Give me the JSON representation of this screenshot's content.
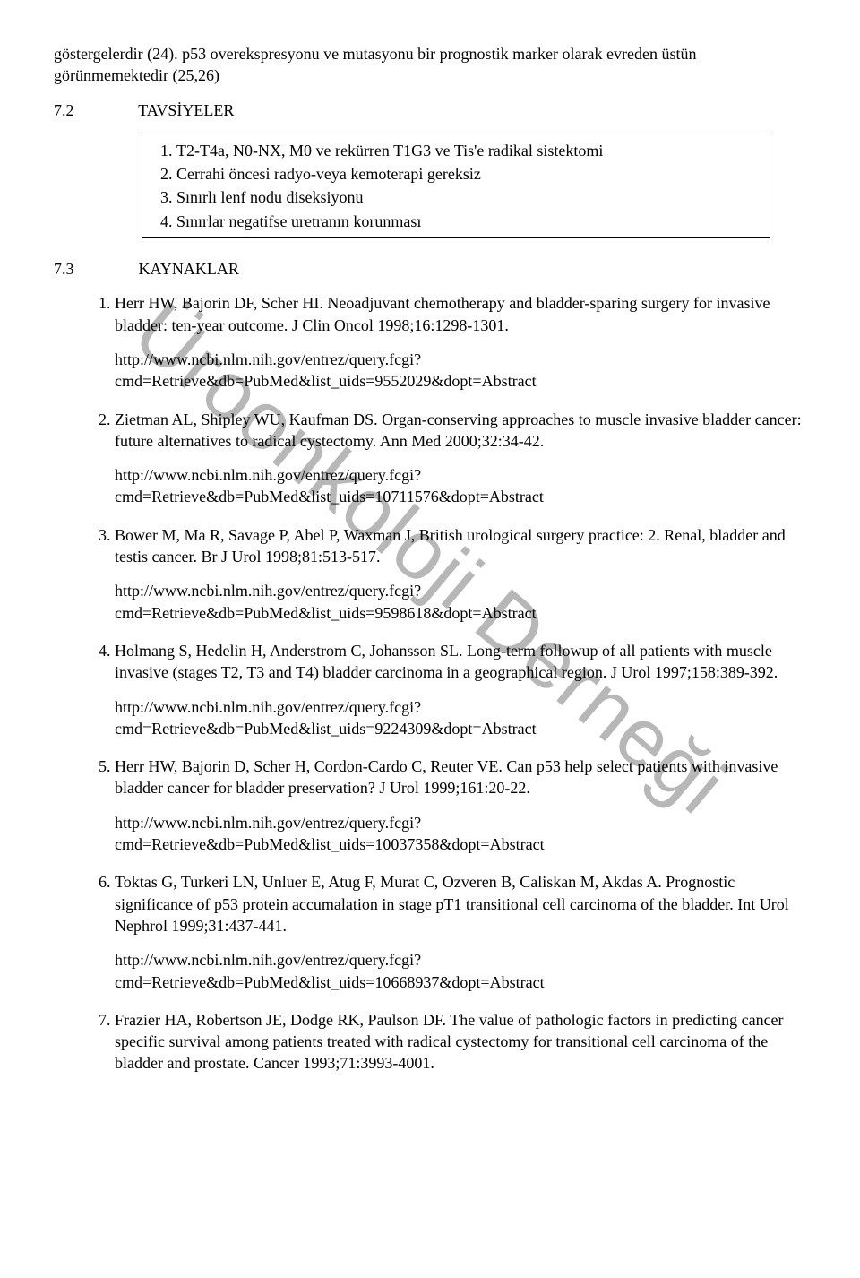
{
  "watermark": "Üroonkoloji Derneği",
  "intro_para": "göstergelerdir (24). p53 overekspresyonu ve mutasyonu bir prognostik marker olarak evreden üstün görünmemektedir (25,26)",
  "section_72": {
    "num": "7.2",
    "title": "TAVSİYELER"
  },
  "recommendations": [
    "T2-T4a, N0-NX, M0 ve rekürren T1G3 ve Tis'e radikal sistektomi",
    "Cerrahi öncesi radyo-veya kemoterapi gereksiz",
    "Sınırlı lenf nodu diseksiyonu",
    "Sınırlar negatifse uretranın korunması"
  ],
  "section_73": {
    "num": "7.3",
    "title": "KAYNAKLAR"
  },
  "refs": [
    {
      "text": "Herr HW, Bajorin DF, Scher HI. Neoadjuvant chemotherapy and bladder-sparing surgery for invasive bladder: ten-year outcome. J Clin Oncol 1998;16:1298-1301.",
      "url": "http://www.ncbi.nlm.nih.gov/entrez/query.fcgi?cmd=Retrieve&db=PubMed&list_uids=9552029&dopt=Abstract"
    },
    {
      "text": "Zietman AL, Shipley WU, Kaufman DS. Organ-conserving approaches to muscle invasive bladder cancer: future alternatives to radical cystectomy. Ann Med 2000;32:34-42.",
      "url": "http://www.ncbi.nlm.nih.gov/entrez/query.fcgi?cmd=Retrieve&db=PubMed&list_uids=10711576&dopt=Abstract"
    },
    {
      "text": "Bower M, Ma R, Savage P, Abel P, Waxman J, British urological surgery practice: 2. Renal, bladder and testis cancer. Br J Urol 1998;81:513-517.",
      "url": "http://www.ncbi.nlm.nih.gov/entrez/query.fcgi?cmd=Retrieve&db=PubMed&list_uids=9598618&dopt=Abstract"
    },
    {
      "text": "Holmang S, Hedelin H, Anderstrom C, Johansson SL. Long-term followup of all patients with muscle invasive (stages T2, T3 and T4) bladder carcinoma in a geographical region. J Urol 1997;158:389-392.",
      "url": "http://www.ncbi.nlm.nih.gov/entrez/query.fcgi?cmd=Retrieve&db=PubMed&list_uids=9224309&dopt=Abstract"
    },
    {
      "text": "Herr HW, Bajorin D, Scher H, Cordon-Cardo C, Reuter VE. Can p53 help select patients with invasive bladder cancer for bladder preservation? J Urol 1999;161:20-22.",
      "url": "http://www.ncbi.nlm.nih.gov/entrez/query.fcgi?cmd=Retrieve&db=PubMed&list_uids=10037358&dopt=Abstract"
    },
    {
      "text": "Toktas G, Turkeri LN, Unluer E, Atug F, Murat C, Ozveren B, Caliskan M, Akdas A. Prognostic significance of p53 protein accumalation in stage pT1 transitional cell carcinoma of the bladder. Int Urol Nephrol 1999;31:437-441.",
      "url": "http://www.ncbi.nlm.nih.gov/entrez/query.fcgi?cmd=Retrieve&db=PubMed&list_uids=10668937&dopt=Abstract"
    },
    {
      "text": "Frazier HA, Robertson JE, Dodge RK, Paulson DF. The value of pathologic factors in predicting cancer specific survival among patients treated with radical cystectomy for transitional cell carcinoma of the bladder and prostate. Cancer 1993;71:3993-4001.",
      "url": ""
    }
  ]
}
